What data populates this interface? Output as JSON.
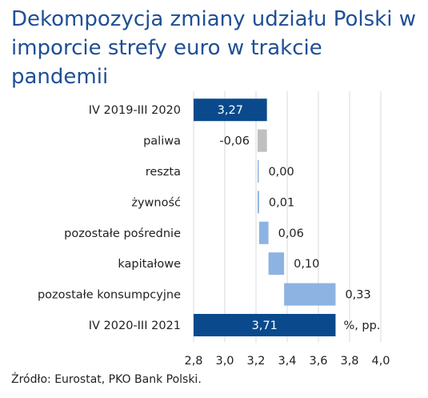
{
  "title": "Dekompozycja zmiany udziału Polski w imporcie strefy euro w trakcie pandemii",
  "source": "Źródło: Eurostat, PKO Bank Polski.",
  "chart_data": {
    "type": "waterfall",
    "orientation": "horizontal",
    "unit_label": "%, pp.",
    "xlim": [
      2.8,
      4.0
    ],
    "xticks": [
      "2,8",
      "3,0",
      "3,2",
      "3,4",
      "3,6",
      "3,8",
      "4,0"
    ],
    "xtick_values": [
      2.8,
      3.0,
      3.2,
      3.4,
      3.6,
      3.8,
      4.0
    ],
    "grid": true,
    "bars": [
      {
        "category": "IV 2019-III 2020",
        "value": 3.27,
        "label": "3,27",
        "kind": "total"
      },
      {
        "category": "paliwa",
        "value": -0.06,
        "label": "-0,06",
        "kind": "negative"
      },
      {
        "category": "reszta",
        "value": 0.0,
        "label": "0,00",
        "kind": "positive"
      },
      {
        "category": "żywność",
        "value": 0.01,
        "label": "0,01",
        "kind": "positive"
      },
      {
        "category": "pozostałe pośrednie",
        "value": 0.06,
        "label": "0,06",
        "kind": "positive"
      },
      {
        "category": "kapitałowe",
        "value": 0.1,
        "label": "0,10",
        "kind": "positive"
      },
      {
        "category": "pozostałe konsumpcyjne",
        "value": 0.33,
        "label": "0,33",
        "kind": "positive"
      },
      {
        "category": "IV 2020-III 2021",
        "value": 3.71,
        "label": "3,71",
        "kind": "total"
      }
    ],
    "colors": {
      "total": "#0a4a8c",
      "positive": "#8db3e2",
      "negative": "#bfbfbf",
      "grid": "#d9d9d9"
    }
  }
}
